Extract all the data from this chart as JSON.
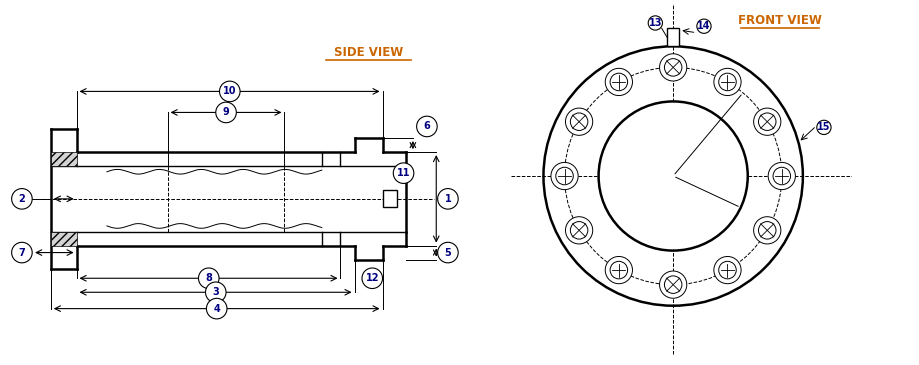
{
  "side_view_label": "SIDE VIEW",
  "front_view_label": "FRONT VIEW",
  "bg_color": "#ffffff",
  "line_color": "#000000",
  "view_label_color": "#cc6600",
  "circle_label_color_side": "#000080",
  "circle_label_color_front": "#008000",
  "lw_thick": 1.8,
  "lw_med": 1.0,
  "lw_thin": 0.7
}
